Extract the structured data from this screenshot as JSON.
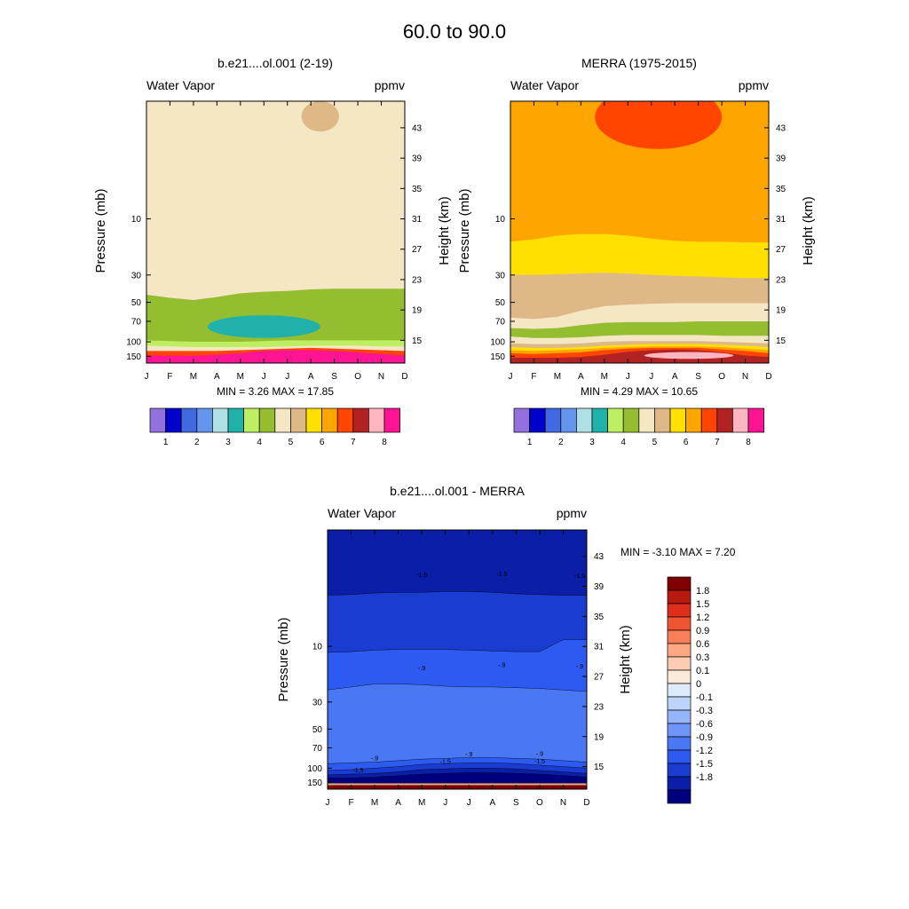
{
  "page_title": "60.0 to  90.0",
  "colors": {
    "seq": [
      "#9370DB",
      "#0000CD",
      "#4169E1",
      "#6495ED",
      "#B0E0E6",
      "#20B2AA",
      "#BEEE62",
      "#94BE30",
      "#F5E6C4",
      "#DEB887",
      "#FFE000",
      "#FFA500",
      "#FF4500",
      "#B22222",
      "#FFB6C1",
      "#FF1493"
    ],
    "diff": [
      "#00007F",
      "#0A1EA8",
      "#1A3CD0",
      "#2D5AF0",
      "#4A78F5",
      "#6E96F8",
      "#96B4FA",
      "#BFD4FC",
      "#DCEAFC",
      "#FBE9DA",
      "#FCCDB2",
      "#FCA882",
      "#F87F58",
      "#EF5533",
      "#DC2E1A",
      "#B81A0F",
      "#800000"
    ]
  },
  "panels": [
    {
      "id": "model",
      "title": "b.e21....ol.001 (2-19)",
      "left_label": "Water Vapor",
      "right_label": "ppmv",
      "min_max": "MIN =   3.26  MAX =  17.85",
      "ylabel": "Pressure (mb)",
      "y2label": "Height (km)",
      "label_bar_values": [
        "1",
        "2",
        "3",
        "4",
        "5",
        "6",
        "7",
        "8"
      ]
    },
    {
      "id": "merra",
      "title": "MERRA (1975-2015)",
      "left_label": "Water Vapor",
      "right_label": "ppmv",
      "min_max": "MIN =   4.29  MAX =  10.65",
      "ylabel": "Pressure (mb)",
      "y2label": "Height (km)",
      "label_bar_values": [
        "1",
        "2",
        "3",
        "4",
        "5",
        "6",
        "7",
        "8"
      ]
    },
    {
      "id": "diff",
      "title": "b.e21....ol.001 - MERRA",
      "left_label": "Water Vapor",
      "right_label": "ppmv",
      "min_max": "MIN =  -3.10  MAX =    7.20",
      "ylabel": "Pressure (mb)",
      "y2label": "Height (km)",
      "label_bar_values": [
        "1.8",
        "1.5",
        "1.2",
        "0.9",
        "0.6",
        "0.3",
        "0.1",
        "0",
        "-0.1",
        "-0.3",
        "-0.6",
        "-0.9",
        "-1.2",
        "-1.5",
        "-1.8"
      ]
    }
  ],
  "chart_data": [
    {
      "type": "heatmap",
      "title": "b.e21....ol.001 (2-19)",
      "xlabel": "",
      "ylabel": "Pressure (mb)",
      "y2label": "Height (km)",
      "x_ticks": [
        "J",
        "F",
        "M",
        "A",
        "M",
        "J",
        "J",
        "A",
        "S",
        "O",
        "N",
        "D"
      ],
      "y_ticks": [
        "150",
        "100",
        "70",
        "50",
        "30",
        "10"
      ],
      "y2_ticks": [
        "15",
        "19",
        "23",
        "27",
        "31",
        "35",
        "39",
        "43"
      ],
      "levels": [
        1.5,
        2,
        2.5,
        3,
        3.5,
        4,
        4.5,
        5,
        5.5,
        6,
        6.5,
        7,
        7.5,
        8
      ],
      "bands": [
        {
          "name": "band-4.5-5",
          "level": 4.5,
          "color_index": 8,
          "boundary_km": [
            30.6,
            31.2,
            32.2,
            33.2,
            33.5,
            33.2,
            32.8,
            32.3,
            31.7,
            31.0,
            30.9,
            31.0
          ]
        },
        {
          "name": "band-4-4.5",
          "level": 4.0,
          "color_index": 7,
          "boundary_km": [
            21.0,
            20.6,
            20.3,
            20.7,
            21.2,
            21.4,
            21.5,
            21.7,
            21.8,
            21.8,
            21.8,
            21.8
          ]
        },
        {
          "name": "band-3.5-4",
          "level": 3.5,
          "color_index": 6,
          "boundary_km": [
            15.0,
            14.9,
            14.8,
            14.8,
            14.8,
            14.9,
            15.0,
            15.0,
            15.0,
            15.0,
            15.0,
            15.0
          ]
        },
        {
          "name": "band-5-5.5",
          "level": 5.0,
          "color_index": 8,
          "boundary_km": [
            14.3,
            14.2,
            14.1,
            14.1,
            14.1,
            14.1,
            14.2,
            14.3,
            14.3,
            14.3,
            14.2,
            14.2
          ]
        },
        {
          "name": "band-6-8",
          "level": 6.0,
          "color_index": 12,
          "boundary_km": [
            13.6,
            13.6,
            13.6,
            13.6,
            13.7,
            13.8,
            13.9,
            14.0,
            13.9,
            13.8,
            13.7,
            13.6
          ]
        },
        {
          "name": "band-8+",
          "level": 8.0,
          "color_index": 15,
          "boundary_km": [
            13.0,
            13.0,
            13.0,
            13.1,
            13.3,
            13.6,
            13.7,
            13.7,
            13.6,
            13.4,
            13.2,
            13.0
          ]
        }
      ],
      "islands": [
        {
          "name": "island-3-3.5",
          "level": 3.0,
          "color_index": 5,
          "center_month": 5.0,
          "center_km": 16.8,
          "half_width_months": 2.4,
          "half_height_km": 1.5
        },
        {
          "name": "island-5-5.5-top",
          "level": 5.0,
          "color_index": 9,
          "center_month": 7.4,
          "center_km": 44.5,
          "half_width_months": 0.8,
          "half_height_km": 2.0
        }
      ],
      "min": 3.26,
      "max": 17.85
    },
    {
      "type": "heatmap",
      "title": "MERRA (1975-2015)",
      "xlabel": "",
      "ylabel": "Pressure (mb)",
      "y2label": "Height (km)",
      "x_ticks": [
        "J",
        "F",
        "M",
        "A",
        "M",
        "J",
        "J",
        "A",
        "S",
        "O",
        "N",
        "D"
      ],
      "y_ticks": [
        "150",
        "100",
        "70",
        "50",
        "30",
        "10"
      ],
      "y2_ticks": [
        "15",
        "19",
        "23",
        "27",
        "31",
        "35",
        "39",
        "43"
      ],
      "levels": [
        1.5,
        2,
        2.5,
        3,
        3.5,
        4,
        4.5,
        5,
        5.5,
        6,
        6.5,
        7,
        7.5,
        8
      ],
      "bands": [
        {
          "name": "band-6-6.5",
          "level": 6.0,
          "color_index": 11,
          "boundary_km": [
            34.5,
            34.6,
            35.0,
            35.4,
            35.6,
            35.6,
            35.4,
            35.2,
            35.2,
            34.8,
            34.6,
            34.6
          ]
        },
        {
          "name": "band-5.5-6",
          "level": 5.5,
          "color_index": 10,
          "boundary_km": [
            28.0,
            28.3,
            28.8,
            29.0,
            29.0,
            28.8,
            28.4,
            28.1,
            28.0,
            28.0,
            27.9,
            27.9
          ]
        },
        {
          "name": "band-5-5.5",
          "level": 5.0,
          "color_index": 9,
          "boundary_km": [
            23.6,
            23.6,
            23.7,
            23.8,
            23.9,
            23.8,
            23.6,
            23.5,
            23.4,
            23.3,
            23.2,
            23.2
          ]
        },
        {
          "name": "band-4.5-5",
          "level": 4.5,
          "color_index": 8,
          "boundary_km": [
            18.0,
            17.8,
            18.1,
            18.9,
            19.5,
            19.7,
            19.8,
            19.9,
            19.9,
            19.9,
            19.9,
            19.9
          ]
        },
        {
          "name": "band-4-4.5",
          "level": 4.0,
          "color_index": 7,
          "boundary_km": [
            16.6,
            16.5,
            16.6,
            17.0,
            17.3,
            17.4,
            17.4,
            17.4,
            17.5,
            17.5,
            17.5,
            17.5
          ]
        },
        {
          "name": "band-5-5.5-low",
          "level": 5.0,
          "color_index": 8,
          "boundary_km": [
            15.5,
            15.3,
            15.3,
            15.4,
            15.6,
            15.7,
            15.7,
            15.7,
            15.7,
            15.6,
            15.6,
            15.6
          ]
        },
        {
          "name": "band-5.5-6-low",
          "level": 5.5,
          "color_index": 9,
          "boundary_km": [
            14.6,
            14.5,
            14.5,
            14.6,
            14.8,
            14.9,
            14.9,
            14.9,
            14.9,
            14.8,
            14.7,
            14.6
          ]
        },
        {
          "name": "band-6-6.5-low",
          "level": 6.0,
          "color_index": 10,
          "boundary_km": [
            14.1,
            14.0,
            14.0,
            14.1,
            14.3,
            14.4,
            14.5,
            14.5,
            14.5,
            14.4,
            14.3,
            14.1
          ]
        },
        {
          "name": "band-6.5-7-low",
          "level": 6.5,
          "color_index": 11,
          "boundary_km": [
            13.7,
            13.6,
            13.7,
            13.8,
            14.0,
            14.1,
            14.2,
            14.2,
            14.2,
            14.1,
            13.9,
            13.7
          ]
        },
        {
          "name": "band-7-7.5-low",
          "level": 7.0,
          "color_index": 12,
          "boundary_km": [
            13.3,
            13.2,
            13.3,
            13.4,
            13.7,
            13.9,
            14.0,
            14.0,
            14.0,
            13.8,
            13.6,
            13.3
          ]
        },
        {
          "name": "band-7.5-8-low",
          "level": 7.5,
          "color_index": 13,
          "boundary_km": [
            12.7,
            12.7,
            12.7,
            12.8,
            13.1,
            13.5,
            13.7,
            13.8,
            13.7,
            13.4,
            13.0,
            12.8
          ]
        }
      ],
      "islands": [
        {
          "name": "island-6.5-7-top",
          "level": 6.5,
          "color_index": 12,
          "center_month": 6.3,
          "center_km": 44.4,
          "half_width_months": 2.7,
          "half_height_km": 4.2
        },
        {
          "name": "island-8-8.5-low",
          "level": 8.0,
          "color_index": 14,
          "center_month": 7.6,
          "center_km": 13.0,
          "half_width_months": 1.9,
          "half_height_km": 0.45
        }
      ],
      "min": 4.29,
      "max": 10.65
    },
    {
      "type": "heatmap",
      "title": "b.e21....ol.001 - MERRA",
      "xlabel": "",
      "ylabel": "Pressure (mb)",
      "y2label": "Height (km)",
      "x_ticks": [
        "J",
        "F",
        "M",
        "A",
        "M",
        "J",
        "J",
        "A",
        "S",
        "O",
        "N",
        "D"
      ],
      "y_ticks": [
        "150",
        "100",
        "70",
        "50",
        "30",
        "10"
      ],
      "y2_ticks": [
        "15",
        "19",
        "23",
        "27",
        "31",
        "35",
        "39",
        "43"
      ],
      "levels": [
        -1.8,
        -1.5,
        -1.2,
        -0.9,
        -0.6,
        -0.3,
        -0.1,
        0,
        0.1,
        0.3,
        0.6,
        0.9,
        1.2,
        1.5,
        1.8
      ],
      "bands": [
        {
          "name": "band-m1.2",
          "level": -1.2,
          "color_index": 2,
          "boundary_km": [
            37.8,
            37.9,
            38.1,
            38.2,
            38.2,
            38.3,
            38.3,
            38.2,
            38.0,
            37.9,
            37.8,
            37.8
          ]
        },
        {
          "name": "band-m0.9",
          "level": -0.9,
          "color_index": 3,
          "boundary_km": [
            30.2,
            30.3,
            30.5,
            30.6,
            30.6,
            30.6,
            30.5,
            30.4,
            30.3,
            30.3,
            31.9,
            31.9
          ]
        },
        {
          "name": "band-m0.6",
          "level": -0.6,
          "color_index": 4,
          "boundary_km": [
            25.2,
            25.6,
            26.0,
            26.0,
            25.9,
            25.7,
            25.6,
            25.6,
            25.5,
            25.4,
            25.2,
            25.0
          ]
        },
        {
          "name": "band-m0.9-low",
          "level": -0.9,
          "color_index": 3,
          "boundary_km": [
            15.4,
            15.5,
            15.6,
            15.8,
            16.0,
            16.1,
            16.2,
            16.2,
            16.1,
            16.0,
            15.8,
            15.6
          ]
        },
        {
          "name": "band-m1.2-low",
          "level": -1.2,
          "color_index": 2,
          "boundary_km": [
            14.5,
            14.6,
            14.8,
            15.0,
            15.3,
            15.4,
            15.5,
            15.5,
            15.4,
            15.2,
            15.0,
            14.8
          ]
        },
        {
          "name": "band-m1.5-low",
          "level": -1.5,
          "color_index": 1,
          "boundary_km": [
            13.9,
            14.0,
            14.1,
            14.3,
            14.6,
            14.7,
            14.8,
            14.8,
            14.7,
            14.5,
            14.3,
            14.1
          ]
        },
        {
          "name": "band-m1.8-low",
          "level": -1.8,
          "color_index": 0,
          "boundary_km": [
            13.5,
            13.5,
            13.6,
            13.8,
            14.0,
            14.1,
            14.2,
            14.2,
            14.1,
            14.0,
            13.8,
            13.6
          ]
        },
        {
          "name": "band-pos-low",
          "level": 0.9,
          "color_index": 11,
          "boundary_km": [
            12.8,
            12.8,
            12.8,
            12.8,
            12.8,
            12.8,
            12.8,
            12.8,
            12.8,
            12.8,
            12.8,
            12.8
          ]
        },
        {
          "name": "band-pos-high",
          "level": 1.8,
          "color_index": 16,
          "boundary_km": [
            12.5,
            12.5,
            12.5,
            12.5,
            12.5,
            12.5,
            12.5,
            12.5,
            12.5,
            12.5,
            12.5,
            12.5
          ]
        }
      ],
      "islands": [],
      "contour_labels": [
        {
          "text": "-1.5",
          "month": 4.0,
          "km": 40.6
        },
        {
          "text": "-1.5",
          "month": 7.4,
          "km": 40.7
        },
        {
          "text": "-1.5",
          "month": 10.7,
          "km": 40.5
        },
        {
          "text": "-.9",
          "month": 4.0,
          "km": 28.2
        },
        {
          "text": "-.9",
          "month": 7.4,
          "km": 28.6
        },
        {
          "text": "-.9",
          "month": 10.7,
          "km": 28.4
        },
        {
          "text": "-.9",
          "month": 2.0,
          "km": 16.2
        },
        {
          "text": "-.9",
          "month": 6.0,
          "km": 16.7
        },
        {
          "text": "-.9",
          "month": 9.0,
          "km": 16.8
        },
        {
          "text": "-1.5",
          "month": 5.0,
          "km": 15.7
        },
        {
          "text": "-1.5",
          "month": 9.0,
          "km": 15.8
        },
        {
          "text": "-1.5",
          "month": 1.3,
          "km": 14.6
        }
      ],
      "min": -3.1,
      "max": 7.2
    }
  ]
}
